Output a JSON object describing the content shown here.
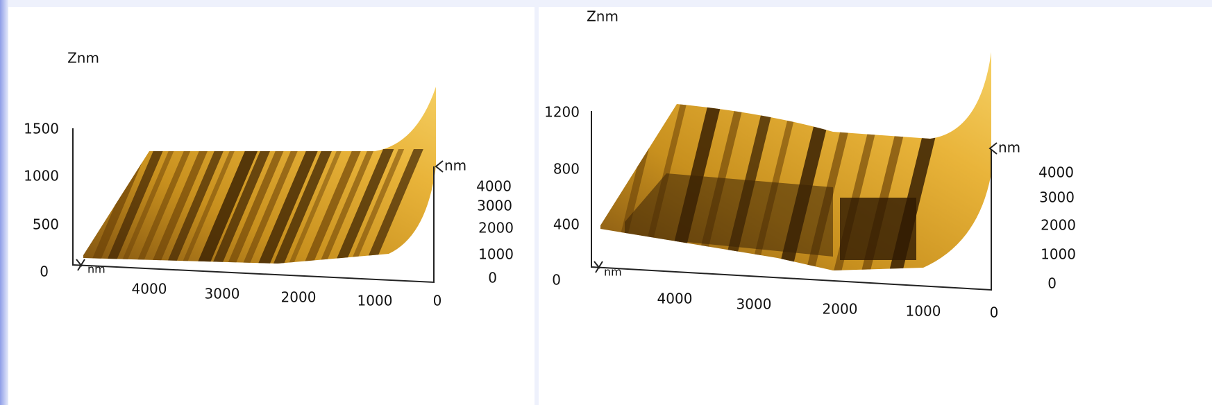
{
  "panels": [
    {
      "z_label": "Znm",
      "z_ticks": [
        "1500",
        "1000",
        "500",
        "0"
      ],
      "x_ticks": [
        "4000",
        "3000",
        "2000",
        "1000",
        "0"
      ],
      "y_label": "nm",
      "y_ticks": [
        "4000",
        "3000",
        "2000",
        "1000",
        "0"
      ],
      "origin_label": "nm"
    },
    {
      "z_label": "Znm",
      "z_ticks": [
        "1200",
        "800",
        "400",
        "0"
      ],
      "x_ticks": [
        "4000",
        "3000",
        "2000",
        "1000",
        "0"
      ],
      "y_label": "nm",
      "y_ticks": [
        "4000",
        "3000",
        "2000",
        "1000",
        "0"
      ],
      "origin_label": "nm"
    }
  ]
}
